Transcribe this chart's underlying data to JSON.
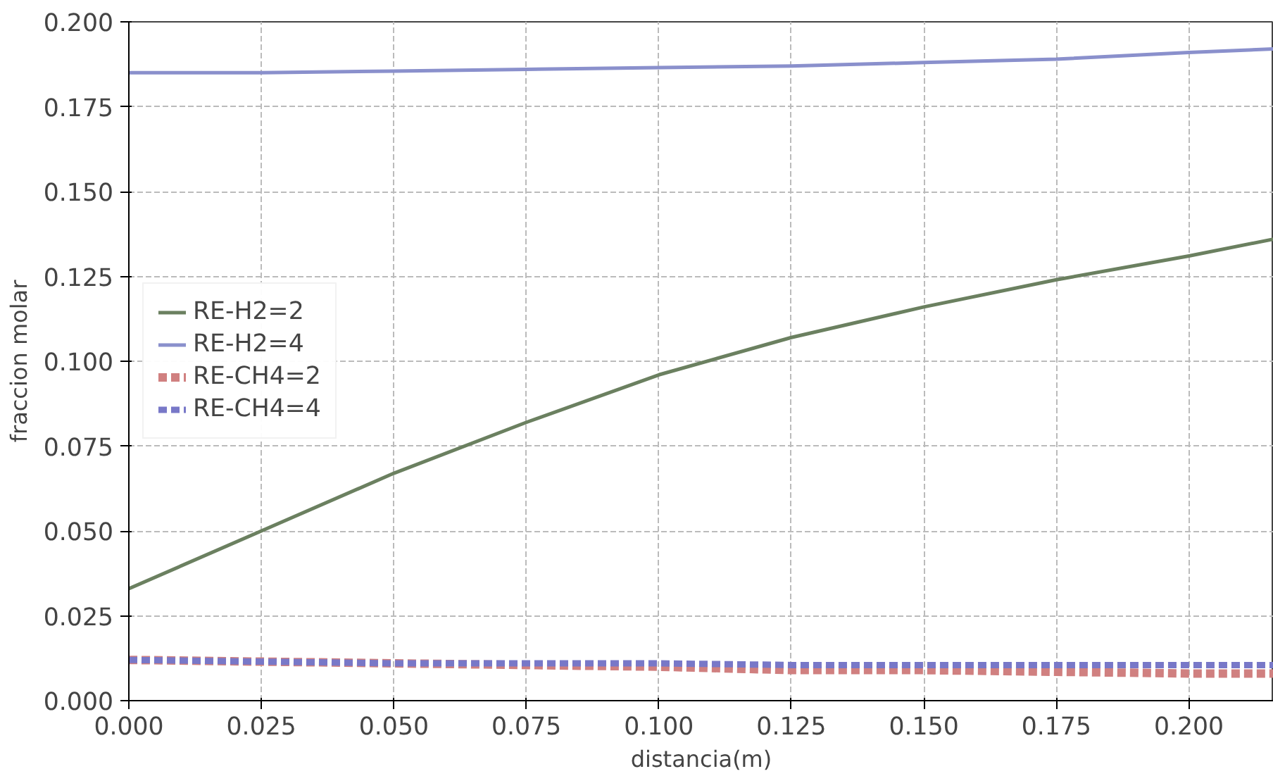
{
  "chart_data": {
    "type": "line",
    "xlabel": "distancia(m)",
    "ylabel": "fraccion molar",
    "xlim": [
      0,
      0.216
    ],
    "ylim": [
      0,
      0.2
    ],
    "xticks": [
      {
        "value": 0,
        "label": "0.000"
      },
      {
        "value": 0.025,
        "label": "0.025"
      },
      {
        "value": 0.05,
        "label": "0.050"
      },
      {
        "value": 0.075,
        "label": "0.075"
      },
      {
        "value": 0.1,
        "label": "0.100"
      },
      {
        "value": 0.125,
        "label": "0.125"
      },
      {
        "value": 0.15,
        "label": "0.150"
      },
      {
        "value": 0.175,
        "label": "0.175"
      },
      {
        "value": 0.2,
        "label": "0.200"
      }
    ],
    "yticks": [
      {
        "value": 0,
        "label": "0.000"
      },
      {
        "value": 0.025,
        "label": "0.025"
      },
      {
        "value": 0.05,
        "label": "0.050"
      },
      {
        "value": 0.075,
        "label": "0.075"
      },
      {
        "value": 0.1,
        "label": "0.100"
      },
      {
        "value": 0.125,
        "label": "0.125"
      },
      {
        "value": 0.15,
        "label": "0.150"
      },
      {
        "value": 0.175,
        "label": "0.175"
      },
      {
        "value": 0.2,
        "label": "0.200"
      }
    ],
    "x": [
      0,
      0.025,
      0.05,
      0.075,
      0.1,
      0.125,
      0.15,
      0.175,
      0.2,
      0.216
    ],
    "grid": true,
    "legend": "left",
    "series": [
      {
        "name": "RE-H2=2",
        "color": "#6b8060",
        "line_style": "solid",
        "values": [
          0.033,
          0.05,
          0.067,
          0.082,
          0.096,
          0.107,
          0.116,
          0.124,
          0.131,
          0.136
        ]
      },
      {
        "name": "RE-H2=4",
        "color": "#8a90cc",
        "line_style": "solid",
        "values": [
          0.185,
          0.185,
          0.1855,
          0.186,
          0.1865,
          0.187,
          0.188,
          0.189,
          0.191,
          0.192
        ]
      },
      {
        "name": "RE-CH4=2",
        "color": "#d08080",
        "line_style": "dashed",
        "values": [
          0.012,
          0.0115,
          0.011,
          0.0105,
          0.01,
          0.009,
          0.009,
          0.0085,
          0.008,
          0.008
        ]
      },
      {
        "name": "RE-CH4=4",
        "color": "#7878c8",
        "line_style": "dashed",
        "values": [
          0.012,
          0.0115,
          0.011,
          0.011,
          0.011,
          0.0105,
          0.0105,
          0.0105,
          0.0105,
          0.0105
        ]
      }
    ]
  }
}
